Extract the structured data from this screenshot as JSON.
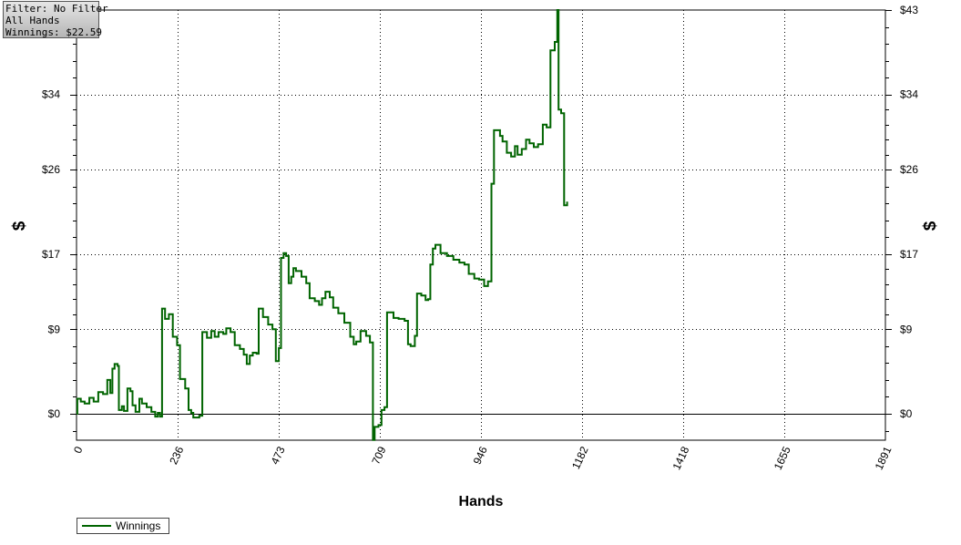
{
  "info": {
    "filter": "Filter: No Filter",
    "hands": "All Hands",
    "winnings": "Winnings: $22.59"
  },
  "colors": {
    "series": "#006400",
    "grid": "#000000",
    "background": "#ffffff"
  },
  "chart_data": {
    "type": "line",
    "title": "",
    "xlabel": "Hands",
    "ylabel": "$",
    "xlim": [
      0,
      1891
    ],
    "ylim": [
      -2.8,
      43
    ],
    "grid": true,
    "legend_placement": "bottom-left",
    "x_ticks": [
      0,
      236,
      473,
      709,
      946,
      1182,
      1418,
      1655,
      1891
    ],
    "x_tick_labels": [
      "0",
      "236",
      "473",
      "709",
      "946",
      "1182",
      "1418",
      "1655",
      "1891"
    ],
    "y_ticks": [
      0,
      9,
      17,
      26,
      34,
      43
    ],
    "y_tick_labels": [
      "$0",
      "$9",
      "$17",
      "$26",
      "$34",
      "$43"
    ],
    "series": [
      {
        "name": "Winnings",
        "color": "#006400",
        "points": [
          [
            0,
            0
          ],
          [
            2,
            1.6
          ],
          [
            10,
            1.3
          ],
          [
            19,
            1.1
          ],
          [
            30,
            1.7
          ],
          [
            40,
            1.3
          ],
          [
            51,
            2.3
          ],
          [
            62,
            2.1
          ],
          [
            72,
            3.6
          ],
          [
            79,
            2.2
          ],
          [
            84,
            4.8
          ],
          [
            89,
            5.3
          ],
          [
            96,
            5.1
          ],
          [
            99,
            0.4
          ],
          [
            106,
            0.8
          ],
          [
            111,
            0.3
          ],
          [
            119,
            2.7
          ],
          [
            126,
            2.4
          ],
          [
            131,
            0.9
          ],
          [
            138,
            0.2
          ],
          [
            147,
            1.6
          ],
          [
            153,
            1.1
          ],
          [
            164,
            0.7
          ],
          [
            175,
            0.2
          ],
          [
            184,
            -0.3
          ],
          [
            190,
            0.1
          ],
          [
            195,
            -0.3
          ],
          [
            200,
            11.2
          ],
          [
            207,
            10.1
          ],
          [
            216,
            10.6
          ],
          [
            225,
            8.2
          ],
          [
            235,
            7.3
          ],
          [
            242,
            3.7
          ],
          [
            254,
            2.7
          ],
          [
            262,
            0.4
          ],
          [
            268,
            0.1
          ],
          [
            273,
            -0.4
          ],
          [
            287,
            -0.2
          ],
          [
            294,
            8.7
          ],
          [
            305,
            8.1
          ],
          [
            315,
            8.8
          ],
          [
            323,
            8.2
          ],
          [
            332,
            8.7
          ],
          [
            343,
            8.5
          ],
          [
            350,
            9.1
          ],
          [
            360,
            8.7
          ],
          [
            370,
            7.3
          ],
          [
            382,
            6.9
          ],
          [
            391,
            6.3
          ],
          [
            398,
            5.3
          ],
          [
            405,
            6.2
          ],
          [
            412,
            6.5
          ],
          [
            421,
            6.4
          ],
          [
            426,
            11.2
          ],
          [
            436,
            10.3
          ],
          [
            448,
            9.5
          ],
          [
            458,
            9.0
          ],
          [
            466,
            5.6
          ],
          [
            473,
            7.0
          ],
          [
            478,
            16.6
          ],
          [
            484,
            17.1
          ],
          [
            490,
            16.8
          ],
          [
            496,
            13.9
          ],
          [
            502,
            14.6
          ],
          [
            507,
            15.5
          ],
          [
            513,
            15.2
          ],
          [
            526,
            14.6
          ],
          [
            537,
            13.9
          ],
          [
            545,
            12.3
          ],
          [
            557,
            12.0
          ],
          [
            567,
            11.6
          ],
          [
            574,
            12.3
          ],
          [
            582,
            13.0
          ],
          [
            592,
            12.4
          ],
          [
            600,
            11.3
          ],
          [
            612,
            10.7
          ],
          [
            626,
            9.7
          ],
          [
            640,
            8.2
          ],
          [
            648,
            7.4
          ],
          [
            654,
            7.7
          ],
          [
            664,
            8.8
          ],
          [
            677,
            8.3
          ],
          [
            686,
            7.6
          ],
          [
            693,
            -2.8
          ],
          [
            697,
            -1.4
          ],
          [
            706,
            -1.2
          ],
          [
            713,
            0.4
          ],
          [
            720,
            0.7
          ],
          [
            726,
            10.8
          ],
          [
            741,
            10.2
          ],
          [
            753,
            10.1
          ],
          [
            767,
            9.9
          ],
          [
            775,
            7.4
          ],
          [
            781,
            7.2
          ],
          [
            791,
            8.3
          ],
          [
            796,
            12.8
          ],
          [
            806,
            12.6
          ],
          [
            816,
            12.1
          ],
          [
            822,
            12.2
          ],
          [
            827,
            15.9
          ],
          [
            833,
            17.6
          ],
          [
            839,
            18.0
          ],
          [
            851,
            17.1
          ],
          [
            866,
            16.8
          ],
          [
            881,
            16.4
          ],
          [
            895,
            16.1
          ],
          [
            907,
            15.9
          ],
          [
            917,
            14.9
          ],
          [
            930,
            14.4
          ],
          [
            941,
            14.3
          ],
          [
            953,
            13.6
          ],
          [
            962,
            14.1
          ],
          [
            970,
            24.5
          ],
          [
            976,
            30.2
          ],
          [
            990,
            29.6
          ],
          [
            996,
            29.0
          ],
          [
            1006,
            27.8
          ],
          [
            1016,
            27.4
          ],
          [
            1025,
            28.5
          ],
          [
            1031,
            27.6
          ],
          [
            1041,
            28.2
          ],
          [
            1051,
            29.2
          ],
          [
            1059,
            28.8
          ],
          [
            1069,
            28.4
          ],
          [
            1079,
            28.7
          ],
          [
            1090,
            30.8
          ],
          [
            1099,
            30.5
          ],
          [
            1108,
            38.7
          ],
          [
            1118,
            39.6
          ],
          [
            1124,
            43.0
          ],
          [
            1127,
            32.4
          ],
          [
            1133,
            32.0
          ],
          [
            1140,
            22.2
          ],
          [
            1147,
            22.6
          ]
        ]
      }
    ]
  },
  "legend": {
    "label": "Winnings"
  }
}
